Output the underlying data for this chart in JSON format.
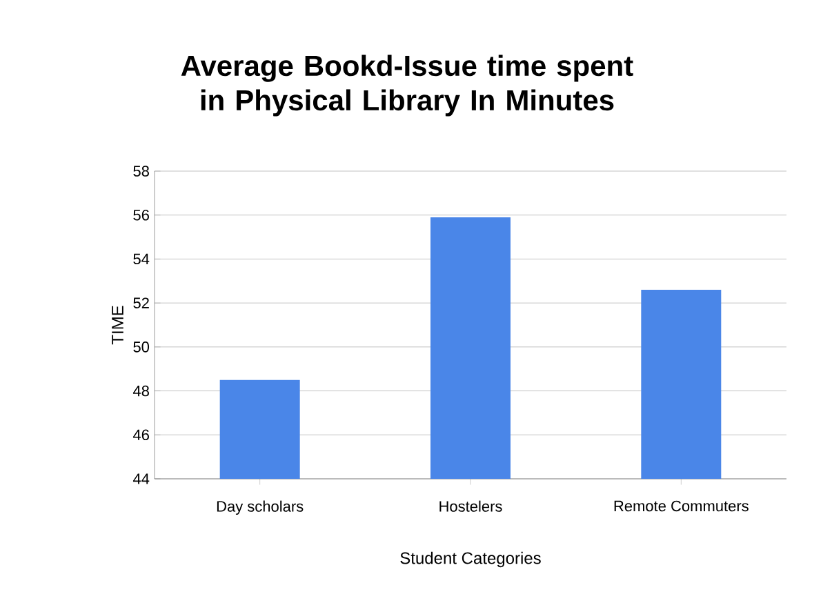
{
  "chart_data": {
    "type": "bar",
    "title": "Average Bookd-Issue time spent in Physical Library In Minutes",
    "xlabel": "Student Categories",
    "ylabel": "TIME",
    "categories": [
      "Day scholars",
      "Hostelers",
      "Remote Commuters"
    ],
    "values": [
      48.5,
      55.9,
      52.6
    ],
    "color": "#4a86e8",
    "ylim": [
      44,
      58
    ],
    "yticks": [
      44,
      46,
      48,
      50,
      52,
      54,
      56,
      58
    ],
    "grid": "y"
  }
}
